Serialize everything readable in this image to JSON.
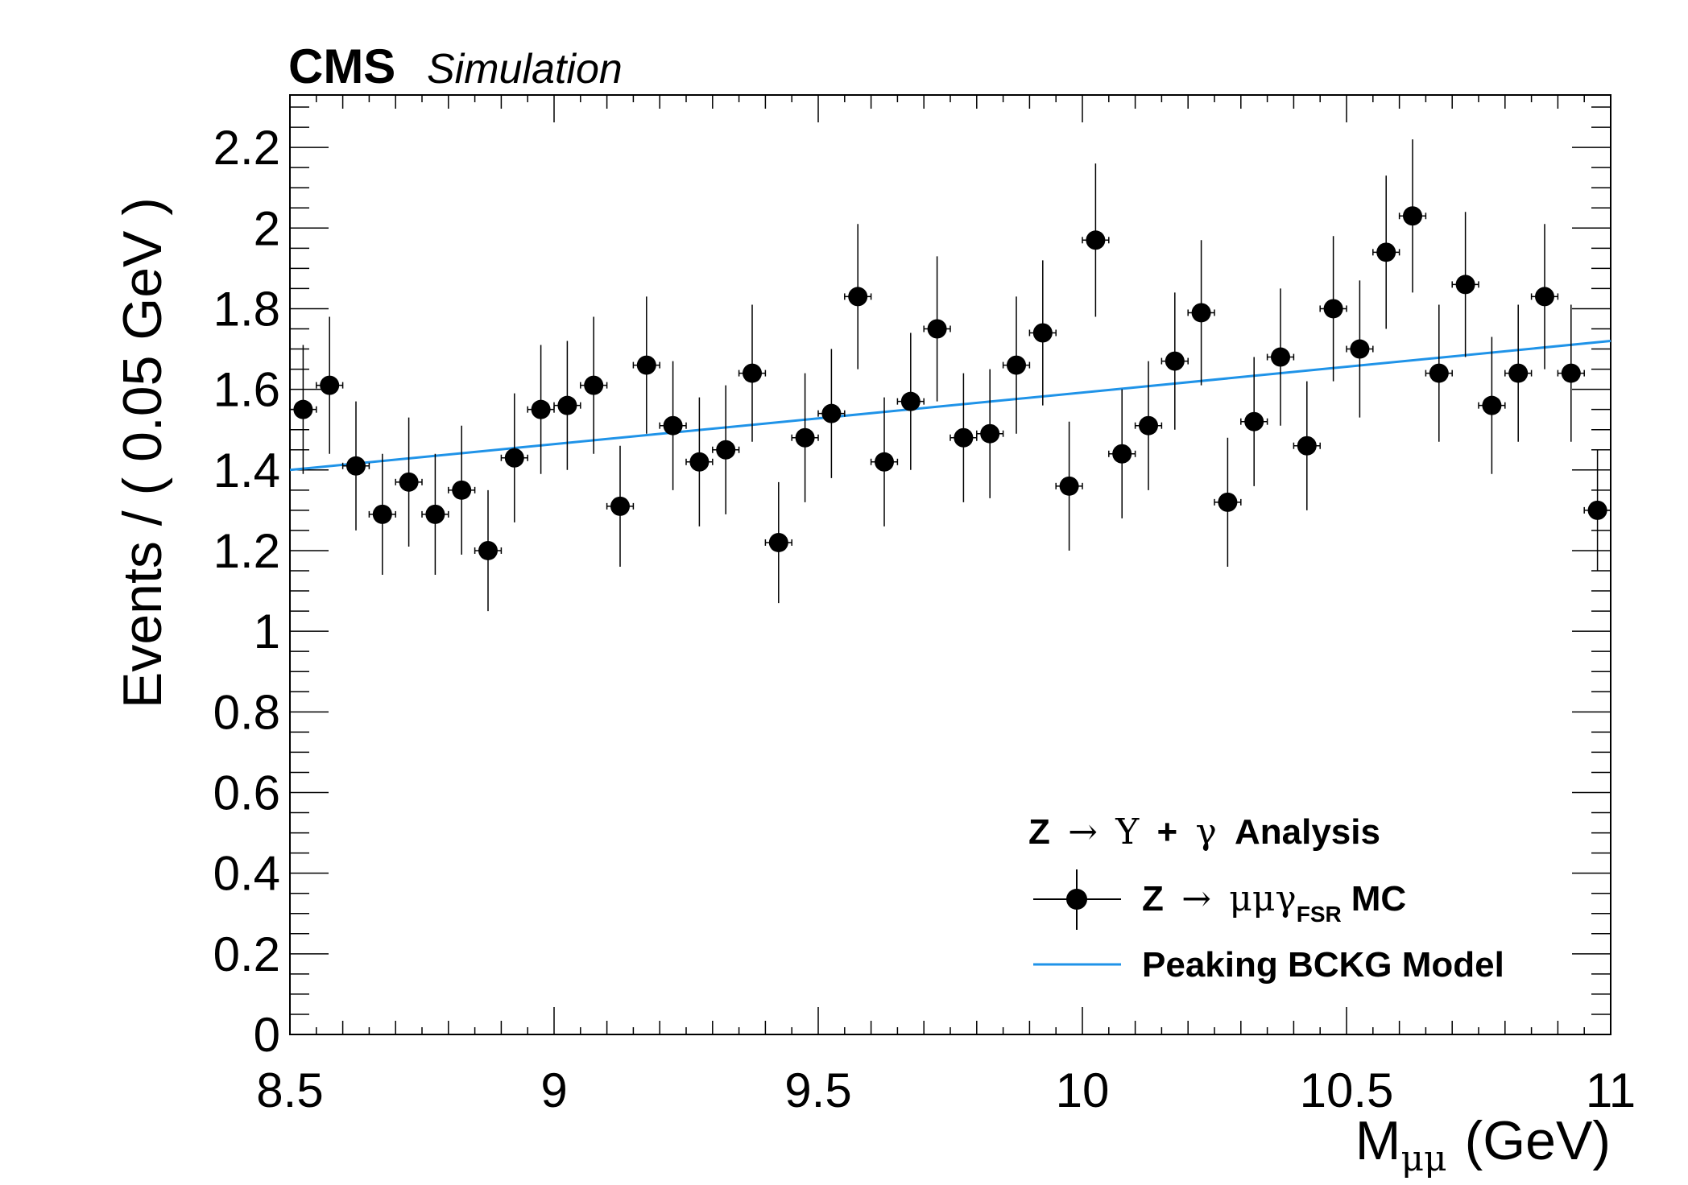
{
  "header": {
    "experiment": "CMS",
    "status": "Simulation"
  },
  "legend": {
    "title_parts": [
      "Z",
      "→",
      "Υ",
      "+",
      "γ",
      "Analysis"
    ],
    "entries": [
      {
        "label_parts": [
          "Z",
          "→",
          "μμγ",
          "FSR",
          "MC"
        ],
        "marker": "point",
        "color": "#000000"
      },
      {
        "label_parts": [
          "Peaking BCKG Model"
        ],
        "marker": "line",
        "color": "#1f93e8"
      }
    ]
  },
  "chart_data": {
    "type": "scatter",
    "title": "",
    "xlabel_main": "M",
    "xlabel_sub": "μμ",
    "xlabel_unit": "(GeV)",
    "ylabel": "Events / ( 0.05 GeV )",
    "xlim": [
      8.5,
      11.0
    ],
    "ylim": [
      0,
      2.33
    ],
    "x_ticks": [
      8.5,
      9,
      9.5,
      10,
      10.5,
      11
    ],
    "x_tick_labels": [
      "8.5",
      "9",
      "9.5",
      "10",
      "10.5",
      "11"
    ],
    "y_ticks": [
      0,
      0.2,
      0.4,
      0.6,
      0.8,
      1,
      1.2,
      1.4,
      1.6,
      1.8,
      2,
      2.2
    ],
    "y_tick_labels": [
      "0",
      "0.2",
      "0.4",
      "0.6",
      "0.8",
      "1",
      "1.2",
      "1.4",
      "1.6",
      "1.8",
      "2",
      "2.2"
    ],
    "grid": false,
    "legend_position": "bottom-right",
    "bin_width": 0.05,
    "series": [
      {
        "name": "Z → μμγ FSR MC",
        "kind": "points_with_errors",
        "color": "#000000",
        "x": [
          8.525,
          8.575,
          8.625,
          8.675,
          8.725,
          8.775,
          8.825,
          8.875,
          8.925,
          8.975,
          9.025,
          9.075,
          9.125,
          9.175,
          9.225,
          9.275,
          9.325,
          9.375,
          9.425,
          9.475,
          9.525,
          9.575,
          9.625,
          9.675,
          9.725,
          9.775,
          9.825,
          9.875,
          9.925,
          9.975,
          10.025,
          10.075,
          10.125,
          10.175,
          10.225,
          10.275,
          10.325,
          10.375,
          10.425,
          10.475,
          10.525,
          10.575,
          10.625,
          10.675,
          10.725,
          10.775,
          10.825,
          10.875,
          10.925,
          10.975
        ],
        "y": [
          1.55,
          1.61,
          1.41,
          1.29,
          1.37,
          1.29,
          1.35,
          1.2,
          1.43,
          1.55,
          1.56,
          1.61,
          1.31,
          1.66,
          1.51,
          1.42,
          1.45,
          1.64,
          1.22,
          1.48,
          1.54,
          1.83,
          1.42,
          1.57,
          1.75,
          1.48,
          1.49,
          1.66,
          1.74,
          1.36,
          1.97,
          1.44,
          1.51,
          1.67,
          1.79,
          1.32,
          1.52,
          1.68,
          1.46,
          1.8,
          1.7,
          1.94,
          2.03,
          1.64,
          1.86,
          1.56,
          1.64,
          1.83,
          1.64,
          1.3
        ],
        "yerr": [
          0.16,
          0.17,
          0.16,
          0.15,
          0.16,
          0.15,
          0.16,
          0.15,
          0.16,
          0.16,
          0.16,
          0.17,
          0.15,
          0.17,
          0.16,
          0.16,
          0.16,
          0.17,
          0.15,
          0.16,
          0.16,
          0.18,
          0.16,
          0.17,
          0.18,
          0.16,
          0.16,
          0.17,
          0.18,
          0.16,
          0.19,
          0.16,
          0.16,
          0.17,
          0.18,
          0.16,
          0.16,
          0.17,
          0.16,
          0.18,
          0.17,
          0.19,
          0.19,
          0.17,
          0.18,
          0.17,
          0.17,
          0.18,
          0.17,
          0.15
        ]
      },
      {
        "name": "Peaking BCKG Model",
        "kind": "line",
        "color": "#1f93e8",
        "x": [
          8.5,
          11.0
        ],
        "y": [
          1.4,
          1.72
        ]
      }
    ]
  }
}
